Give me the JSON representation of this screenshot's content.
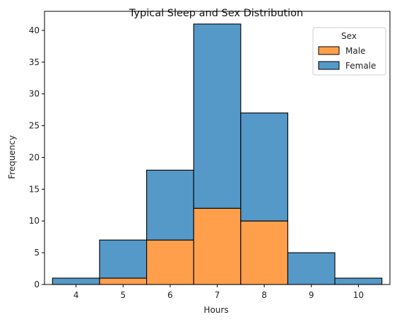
{
  "chart_data": {
    "type": "bar",
    "stacked": true,
    "title": "Typical Sleep and Sex Distribution",
    "xlabel": "Hours",
    "ylabel": "Frequency",
    "categories": [
      "4",
      "5",
      "6",
      "7",
      "8",
      "9",
      "10"
    ],
    "x": [
      4,
      5,
      6,
      7,
      8,
      9,
      10
    ],
    "xlim": [
      3.33,
      10.67
    ],
    "ylim": [
      0,
      43
    ],
    "yticks": [
      0,
      5,
      10,
      15,
      20,
      25,
      30,
      35,
      40
    ],
    "legend_title": "Sex",
    "legend_position": "top-right",
    "grid": false,
    "series": [
      {
        "name": "Male",
        "color": "#ff9f4b",
        "values": [
          0,
          1,
          7,
          12,
          10,
          0,
          0
        ]
      },
      {
        "name": "Female",
        "color": "#5599c8",
        "values": [
          1,
          6,
          11,
          29,
          17,
          5,
          1
        ]
      }
    ]
  }
}
